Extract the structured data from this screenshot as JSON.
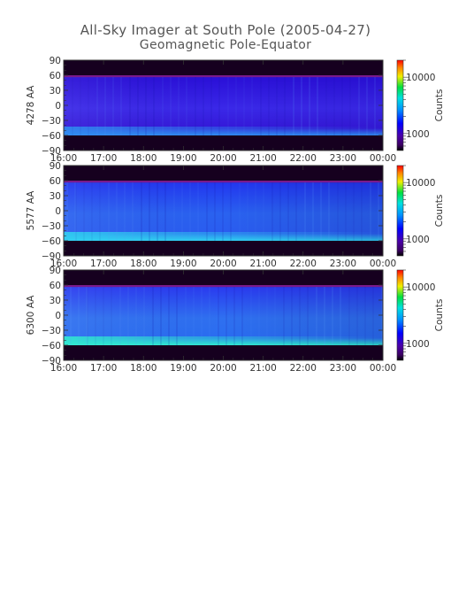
{
  "title": "All-Sky Imager at South Pole (2005-04-27)",
  "subtitle": "Geomagnetic Pole-Equator",
  "chart_data": [
    {
      "type": "heatmap",
      "ylabel": "4278 AA",
      "colorbar_label": "Counts",
      "x_ticks": [
        "16:00",
        "17:00",
        "18:00",
        "19:00",
        "20:00",
        "21:00",
        "22:00",
        "23:00",
        "00:00"
      ],
      "y_ticks": [
        90,
        60,
        30,
        0,
        -30,
        -60,
        -90
      ],
      "ylim": [
        -90,
        90
      ],
      "xlim": [
        "16:00",
        "00:00"
      ],
      "colorbar_ticks": [
        10000,
        1000
      ],
      "data_extent": [
        -60,
        60
      ]
    },
    {
      "type": "heatmap",
      "ylabel": "5577 AA",
      "colorbar_label": "Counts",
      "x_ticks": [
        "16:00",
        "17:00",
        "18:00",
        "19:00",
        "20:00",
        "21:00",
        "22:00",
        "23:00",
        "00:00"
      ],
      "y_ticks": [
        90,
        60,
        30,
        0,
        -30,
        -60,
        -90
      ],
      "ylim": [
        -90,
        90
      ],
      "xlim": [
        "16:00",
        "00:00"
      ],
      "colorbar_ticks": [
        10000,
        1000
      ],
      "data_extent": [
        -60,
        60
      ]
    },
    {
      "type": "heatmap",
      "ylabel": "6300 AA",
      "colorbar_label": "Counts",
      "x_ticks": [
        "16:00",
        "17:00",
        "18:00",
        "19:00",
        "20:00",
        "21:00",
        "22:00",
        "23:00",
        "00:00"
      ],
      "y_ticks": [
        90,
        60,
        30,
        0,
        -30,
        -60,
        -90
      ],
      "ylim": [
        -90,
        90
      ],
      "xlim": [
        "16:00",
        "00:00"
      ],
      "colorbar_ticks": [
        10000,
        1000
      ],
      "data_extent": [
        -60,
        60
      ]
    }
  ]
}
